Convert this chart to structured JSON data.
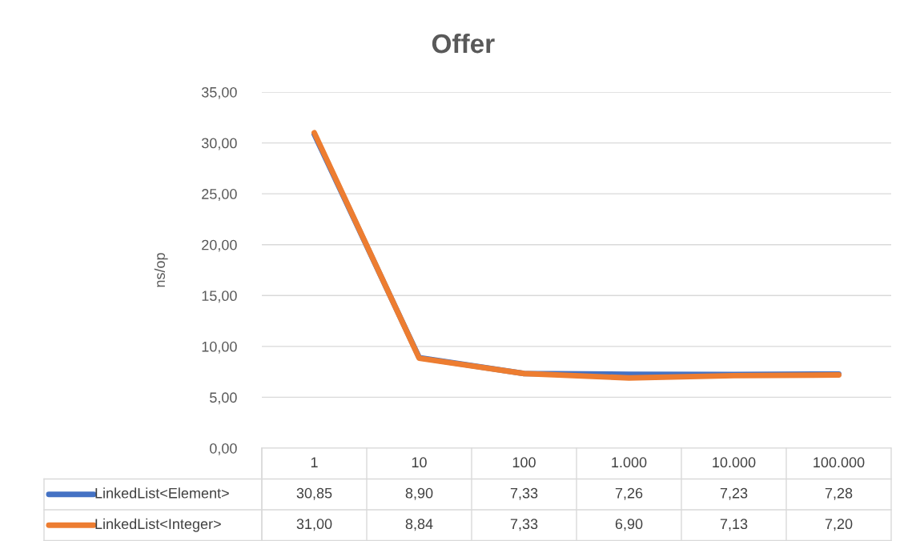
{
  "chart_data": {
    "type": "line",
    "title": "Offer",
    "ylabel": "ns/op",
    "categories": [
      "1",
      "10",
      "100",
      "1.000",
      "10.000",
      "100.000"
    ],
    "series": [
      {
        "name": "LinkedList<Element>",
        "color": "#4472c4",
        "values": [
          30.85,
          8.9,
          7.33,
          7.26,
          7.23,
          7.28
        ],
        "value_labels": [
          "30,85",
          "8,90",
          "7,33",
          "7,26",
          "7,23",
          "7,28"
        ]
      },
      {
        "name": "LinkedList<Integer>",
        "color": "#ed7d31",
        "values": [
          31.0,
          8.84,
          7.33,
          6.9,
          7.13,
          7.2
        ],
        "value_labels": [
          "31,00",
          "8,84",
          "7,33",
          "6,90",
          "7,13",
          "7,20"
        ]
      }
    ],
    "ylim": [
      0,
      35
    ],
    "yticks": [
      {
        "value": 0,
        "label": "0,00"
      },
      {
        "value": 5,
        "label": "5,00"
      },
      {
        "value": 10,
        "label": "10,00"
      },
      {
        "value": 15,
        "label": "15,00"
      },
      {
        "value": 20,
        "label": "20,00"
      },
      {
        "value": 25,
        "label": "25,00"
      },
      {
        "value": 30,
        "label": "30,00"
      },
      {
        "value": 35,
        "label": "35,00"
      }
    ],
    "grid": "y",
    "legend": "bottom",
    "marker": "none",
    "line_style": "solid"
  }
}
